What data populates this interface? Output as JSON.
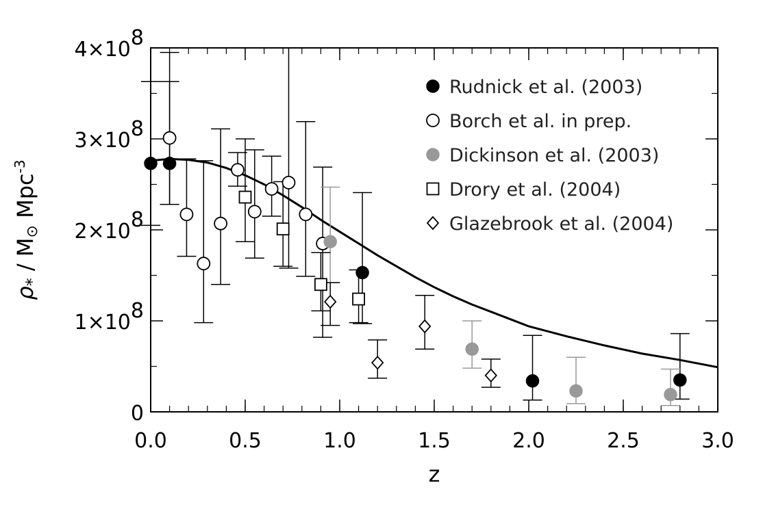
{
  "chart_data": {
    "type": "scatter",
    "xlabel": "z",
    "ylabel_parts": {
      "rho": "ρ",
      "sub": "*",
      "mid": " / M",
      "sun": "⊙",
      "unit": " Mpc",
      "exp": "-3"
    },
    "xlim": [
      0.0,
      3.0
    ],
    "ylim": [
      0,
      400000000
    ],
    "x_ticks": [
      {
        "value": 0.0,
        "label": "0.0"
      },
      {
        "value": 0.5,
        "label": "0.5"
      },
      {
        "value": 1.0,
        "label": "1.0"
      },
      {
        "value": 1.5,
        "label": "1.5"
      },
      {
        "value": 2.0,
        "label": "2.0"
      },
      {
        "value": 2.5,
        "label": "2.5"
      },
      {
        "value": 3.0,
        "label": "3.0"
      }
    ],
    "y_ticks": [
      {
        "value": 0,
        "mantissa": "0",
        "exp": ""
      },
      {
        "value": 100000000,
        "mantissa": "1×10",
        "exp": "8"
      },
      {
        "value": 200000000,
        "mantissa": "2×10",
        "exp": "8"
      },
      {
        "value": 300000000,
        "mantissa": "3×10",
        "exp": "8"
      },
      {
        "value": 400000000,
        "mantissa": "4×10",
        "exp": "8"
      }
    ],
    "legend_position": "top-right",
    "series": [
      {
        "name": "Rudnick et al. (2003)",
        "marker": "filled-circle",
        "color": "#000000",
        "points": [
          {
            "x": 0.0,
            "y": 273000000,
            "lo": 205000000,
            "hi": 363000000
          },
          {
            "x": 0.1,
            "y": 273000000,
            "lo": 228000000,
            "hi": 395000000
          },
          {
            "x": 1.12,
            "y": 153000000,
            "lo": 97000000,
            "hi": 241000000
          },
          {
            "x": 2.02,
            "y": 34000000,
            "lo": 13000000,
            "hi": 84000000
          },
          {
            "x": 2.8,
            "y": 35000000,
            "lo": 14000000,
            "hi": 86000000
          }
        ]
      },
      {
        "name": "Borch et al. in prep.",
        "marker": "open-circle",
        "color": "#000000",
        "points": [
          {
            "x": 0.1,
            "y": 301000000,
            "lo": 228000000,
            "hi": 363000000
          },
          {
            "x": 0.19,
            "y": 217000000,
            "lo": 171000000,
            "hi": 278000000
          },
          {
            "x": 0.28,
            "y": 163000000,
            "lo": 98000000,
            "hi": 276000000
          },
          {
            "x": 0.37,
            "y": 207000000,
            "lo": 140000000,
            "hi": 311000000
          },
          {
            "x": 0.46,
            "y": 266000000,
            "lo": 248000000,
            "hi": 285000000
          },
          {
            "x": 0.55,
            "y": 220000000,
            "lo": 169000000,
            "hi": 288000000
          },
          {
            "x": 0.64,
            "y": 245000000,
            "lo": 215000000,
            "hi": 281000000
          },
          {
            "x": 0.73,
            "y": 252000000,
            "lo": 158000000,
            "hi": 400000000
          },
          {
            "x": 0.82,
            "y": 217000000,
            "lo": 149000000,
            "hi": 319000000
          },
          {
            "x": 0.91,
            "y": 185000000,
            "lo": 82000000,
            "hi": 269000000
          }
        ]
      },
      {
        "name": "Dickinson et al. (2003)",
        "marker": "filled-circle",
        "color": "#999999",
        "points": [
          {
            "x": 0.95,
            "y": 187000000,
            "lo": 142000000,
            "hi": 247000000
          },
          {
            "x": 1.7,
            "y": 69000000,
            "lo": 48000000,
            "hi": 100000000
          },
          {
            "x": 2.25,
            "y": 23000000,
            "lo": 9000000,
            "hi": 60000000
          },
          {
            "x": 2.75,
            "y": 19000000,
            "lo": 7000000,
            "hi": 47000000
          }
        ]
      },
      {
        "name": "Drory et al. (2004)",
        "marker": "open-square",
        "color": "#000000",
        "points": [
          {
            "x": 0.5,
            "y": 236000000,
            "lo": 187000000,
            "hi": 300000000
          },
          {
            "x": 0.7,
            "y": 201000000,
            "lo": 160000000,
            "hi": 253000000
          },
          {
            "x": 0.9,
            "y": 140000000,
            "lo": 111000000,
            "hi": 175000000
          },
          {
            "x": 1.1,
            "y": 124000000,
            "lo": 98000000,
            "hi": 156000000
          }
        ]
      },
      {
        "name": "Glazebrook et al. (2004)",
        "marker": "open-diamond",
        "color": "#000000",
        "points": [
          {
            "x": 0.95,
            "y": 121000000,
            "lo": 95000000,
            "hi": 142000000
          },
          {
            "x": 1.2,
            "y": 54000000,
            "lo": 37000000,
            "hi": 79000000
          },
          {
            "x": 1.45,
            "y": 94000000,
            "lo": 69000000,
            "hi": 128000000
          },
          {
            "x": 1.8,
            "y": 40000000,
            "lo": 27000000,
            "hi": 58000000
          }
        ]
      }
    ],
    "model_curve": {
      "color": "#000000",
      "points": [
        {
          "x": 0.0,
          "y": 276000000
        },
        {
          "x": 0.1,
          "y": 278000000
        },
        {
          "x": 0.2,
          "y": 277000000
        },
        {
          "x": 0.3,
          "y": 274000000
        },
        {
          "x": 0.4,
          "y": 268000000
        },
        {
          "x": 0.5,
          "y": 260000000
        },
        {
          "x": 0.6,
          "y": 250000000
        },
        {
          "x": 0.7,
          "y": 238000000
        },
        {
          "x": 0.8,
          "y": 225000000
        },
        {
          "x": 0.9,
          "y": 211000000
        },
        {
          "x": 1.0,
          "y": 198000000
        },
        {
          "x": 1.1,
          "y": 185000000
        },
        {
          "x": 1.2,
          "y": 172000000
        },
        {
          "x": 1.3,
          "y": 160000000
        },
        {
          "x": 1.4,
          "y": 148000000
        },
        {
          "x": 1.5,
          "y": 137000000
        },
        {
          "x": 1.6,
          "y": 127000000
        },
        {
          "x": 1.7,
          "y": 118000000
        },
        {
          "x": 1.8,
          "y": 110000000
        },
        {
          "x": 1.9,
          "y": 102000000
        },
        {
          "x": 2.0,
          "y": 94000000
        },
        {
          "x": 2.2,
          "y": 83000000
        },
        {
          "x": 2.4,
          "y": 73000000
        },
        {
          "x": 2.6,
          "y": 64000000
        },
        {
          "x": 2.8,
          "y": 57000000
        },
        {
          "x": 3.0,
          "y": 49000000
        }
      ]
    }
  }
}
